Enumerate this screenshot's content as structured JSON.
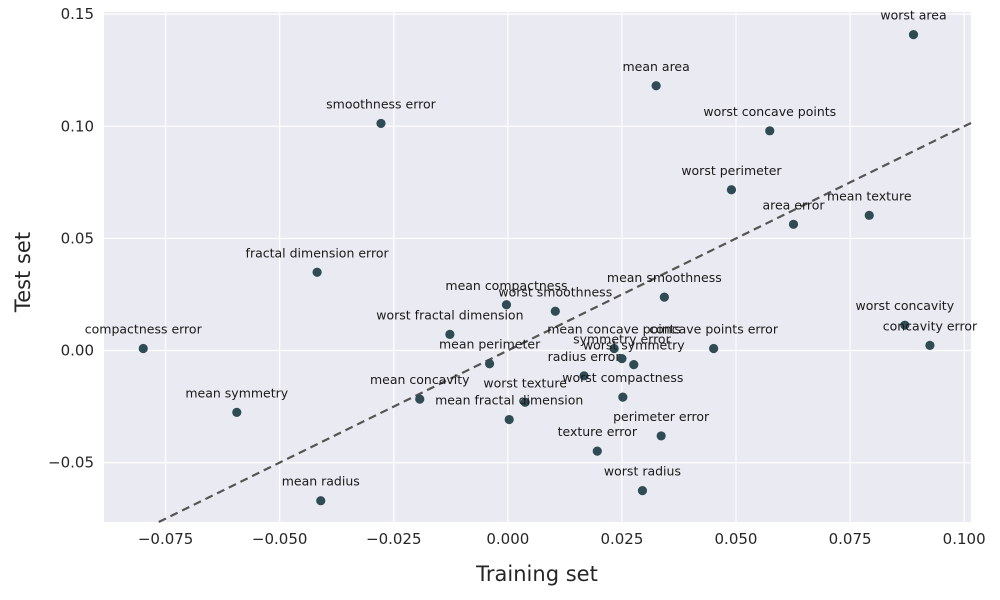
{
  "chart_data": {
    "type": "scatter",
    "xlabel": "Training set",
    "ylabel": "Test set",
    "xlim": [
      -0.0885,
      0.1015
    ],
    "ylim": [
      -0.0765,
      0.151
    ],
    "xticks": [
      -0.075,
      -0.05,
      -0.025,
      0.0,
      0.025,
      0.05,
      0.075,
      0.1
    ],
    "xtick_labels": [
      "−0.075",
      "−0.050",
      "−0.025",
      "0.000",
      "0.025",
      "0.050",
      "0.075",
      "0.100"
    ],
    "yticks": [
      -0.05,
      0.0,
      0.05,
      0.1,
      0.15
    ],
    "ytick_labels": [
      "−0.05",
      "0.00",
      "0.05",
      "0.10",
      "0.15"
    ],
    "grid": true,
    "reference_line": "y = x (dashed)",
    "colors": {
      "background": "#eaeaf2",
      "grid": "#ffffff",
      "point": "#2f4b54",
      "reference_line": "#555555"
    },
    "points": [
      {
        "label": "worst area",
        "x": 0.0889,
        "y": 0.1409
      },
      {
        "label": "mean area",
        "x": 0.0325,
        "y": 0.1181
      },
      {
        "label": "smoothness error",
        "x": -0.0278,
        "y": 0.1013
      },
      {
        "label": "worst concave points",
        "x": 0.0574,
        "y": 0.098
      },
      {
        "label": "worst perimeter",
        "x": 0.049,
        "y": 0.0717
      },
      {
        "label": "mean texture",
        "x": 0.0792,
        "y": 0.0603
      },
      {
        "label": "area error",
        "x": 0.0626,
        "y": 0.0563
      },
      {
        "label": "fractal dimension error",
        "x": -0.0418,
        "y": 0.0349
      },
      {
        "label": "mean smoothness",
        "x": 0.0343,
        "y": 0.0238
      },
      {
        "label": "mean compactness",
        "x": -0.0003,
        "y": 0.0204
      },
      {
        "label": "worst smoothness",
        "x": 0.0104,
        "y": 0.0175
      },
      {
        "label": "worst concavity",
        "x": 0.087,
        "y": 0.0113
      },
      {
        "label": "worst fractal dimension",
        "x": -0.0127,
        "y": 0.0072
      },
      {
        "label": "concavity error",
        "x": 0.0925,
        "y": 0.0023
      },
      {
        "label": "compactness error",
        "x": -0.0799,
        "y": 0.0009
      },
      {
        "label": "concave points error",
        "x": 0.0451,
        "y": 0.0009
      },
      {
        "label": "mean concave points",
        "x": 0.0233,
        "y": 0.0009
      },
      {
        "label": "symmetry error",
        "x": 0.025,
        "y": -0.0036
      },
      {
        "label": "mean perimeter",
        "x": -0.004,
        "y": -0.0059
      },
      {
        "label": "worst symmetry",
        "x": 0.0276,
        "y": -0.0063
      },
      {
        "label": "radius error",
        "x": 0.0167,
        "y": -0.0113
      },
      {
        "label": "worst compactness",
        "x": 0.0252,
        "y": -0.0208
      },
      {
        "label": "mean concavity",
        "x": -0.0193,
        "y": -0.0217
      },
      {
        "label": "worst texture",
        "x": 0.0038,
        "y": -0.0231
      },
      {
        "label": "mean symmetry",
        "x": -0.0594,
        "y": -0.0276
      },
      {
        "label": "mean fractal dimension",
        "x": 0.0003,
        "y": -0.0308
      },
      {
        "label": "perimeter error",
        "x": 0.0336,
        "y": -0.0381
      },
      {
        "label": "texture error",
        "x": 0.0196,
        "y": -0.0449
      },
      {
        "label": "worst radius",
        "x": 0.0295,
        "y": -0.0625
      },
      {
        "label": "mean radius",
        "x": -0.041,
        "y": -0.067
      }
    ]
  }
}
